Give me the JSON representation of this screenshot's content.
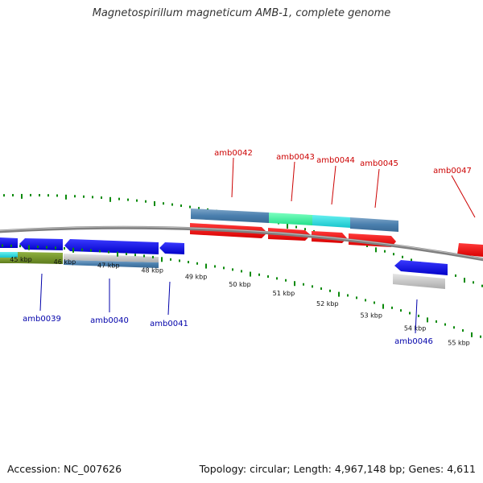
{
  "title": "Magnetospirillum magneticum AMB-1, complete genome",
  "footer": {
    "accession": "Accession: NC_007626",
    "info": "Topology: circular; Length: 4,967,148 bp; Genes: 4,611"
  },
  "colors": {
    "forward_gene": "#ff0000",
    "reverse_gene": "#0000ff",
    "tick": "#0a8a0a",
    "backbone": "#808080",
    "forward_label": "#cc0000",
    "reverse_label": "#0000aa"
  },
  "scale": {
    "labels": [
      "45 kbp",
      "46 kbp",
      "47 kbp",
      "48 kbp",
      "49 kbp",
      "50 kbp",
      "51 kbp",
      "52 kbp",
      "53 kbp",
      "54 kbp",
      "55 kbp"
    ]
  },
  "gene_labels": {
    "forward": [
      "amb0042",
      "amb0043",
      "amb0044",
      "amb0045",
      "amb0047"
    ],
    "reverse": [
      "amb0039",
      "amb0040",
      "amb0041",
      "amb0046"
    ]
  }
}
